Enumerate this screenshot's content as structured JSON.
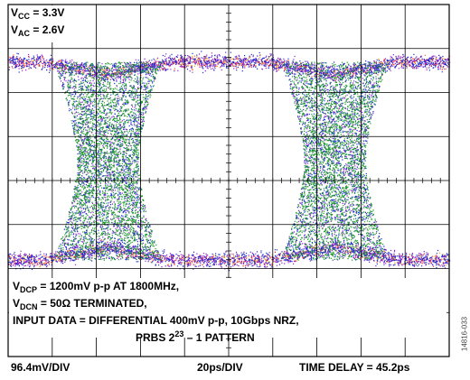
{
  "chart_data": {
    "type": "scatter",
    "subtype": "eye-diagram",
    "grid": {
      "divisions_x": 10,
      "divisions_y": 8,
      "on": true
    },
    "conditions": {
      "vcc": {
        "sym": "V",
        "sub": "CC",
        "rest": " = 3.3V"
      },
      "vac": {
        "sym": "V",
        "sub": "AC",
        "rest": " = 2.6V"
      }
    },
    "notes": {
      "line1": {
        "sym": "V",
        "sub": "DCP",
        "rest": " = 1200mV p-p AT 1800MHz,"
      },
      "line2": {
        "sym": "V",
        "sub": "DCN",
        "rest": " = 50Ω TERMINATED,"
      },
      "line3": "INPUT DATA = DIFFERENTIAL 400mV p-p, 10Gbps NRZ,",
      "line4_pre": "PRBS 2",
      "line4_sup": "23",
      "line4_post": " – 1 PATTERN"
    },
    "vertical_scale": "96.4mV/DIV",
    "horizontal_scale": "20ps/DIV",
    "time_delay": "TIME DELAY = 45.2ps",
    "figure_id": "14816-033",
    "rails": {
      "high_div": 1.3,
      "low_div": 5.8
    },
    "eye_crossings_div": [
      2.25,
      7.4
    ],
    "colors": [
      "#e8291c",
      "#f0a020",
      "#1f2fd0",
      "#1e9a2c",
      "#8a1fd0",
      "#ff5a3c"
    ]
  }
}
